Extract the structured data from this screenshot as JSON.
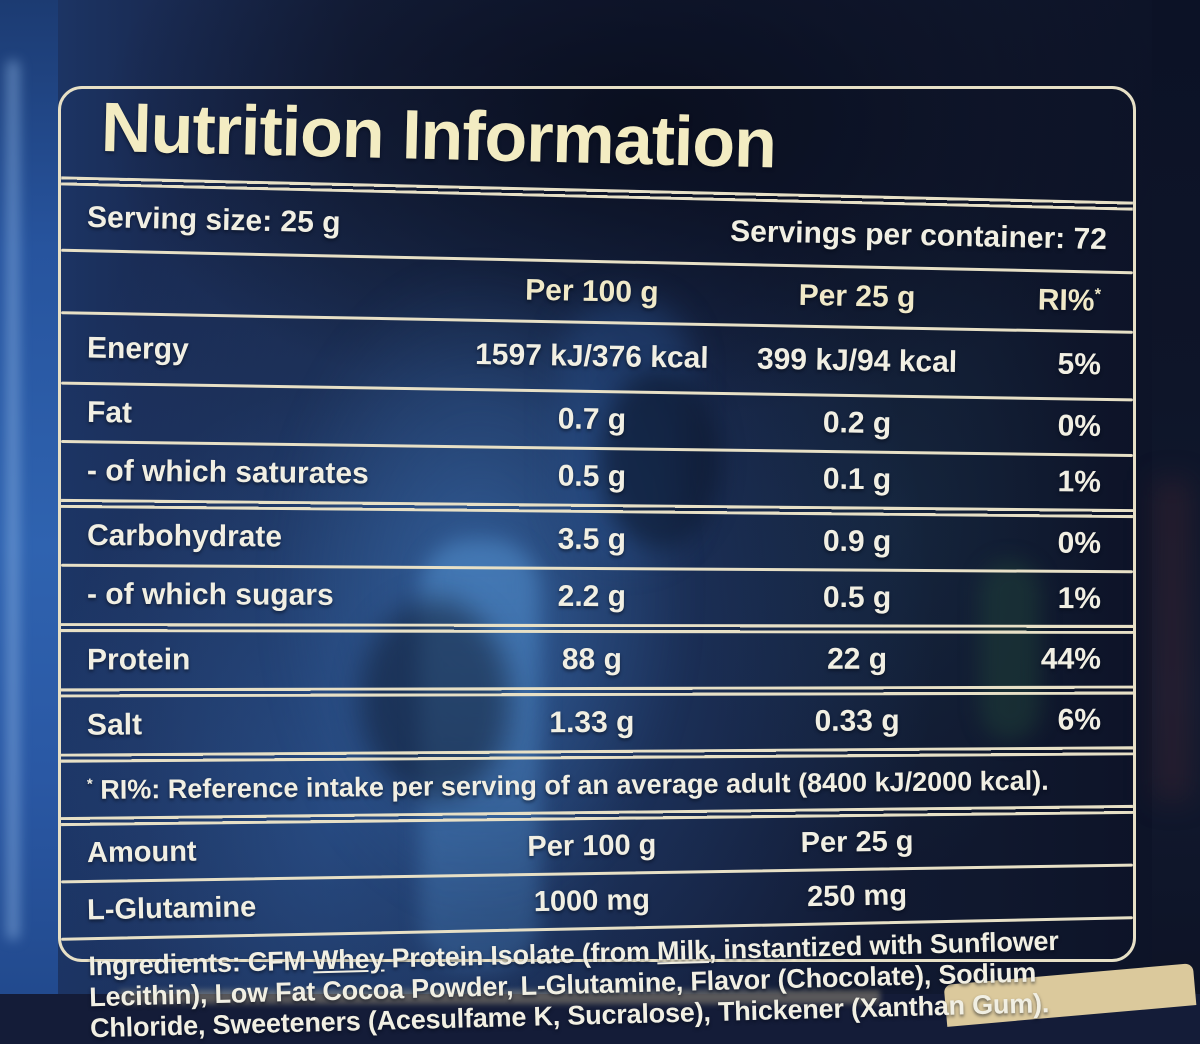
{
  "label": {
    "title": "Nutrition Information",
    "serving_size": "Serving size: 25 g",
    "servings_per_container": "Servings per container: 72",
    "columns": {
      "per100": "Per 100 g",
      "per25": "Per 25 g",
      "ri": "RI%",
      "ri_mark": "*"
    },
    "rows": [
      {
        "label": "Energy",
        "per100": "1597 kJ/376 kcal",
        "per25": "399 kJ/94 kcal",
        "ri": "5%"
      },
      {
        "label": "Fat",
        "per100": "0.7 g",
        "per25": "0.2 g",
        "ri": "0%"
      },
      {
        "label": "- of which saturates",
        "per100": "0.5 g",
        "per25": "0.1 g",
        "ri": "1%"
      },
      {
        "label": "Carbohydrate",
        "per100": "3.5 g",
        "per25": "0.9 g",
        "ri": "0%"
      },
      {
        "label": "- of which sugars",
        "per100": "2.2 g",
        "per25": "0.5 g",
        "ri": "1%"
      },
      {
        "label": "Protein",
        "per100": "88 g",
        "per25": "22 g",
        "ri": "44%"
      },
      {
        "label": "Salt",
        "per100": "1.33 g",
        "per25": "0.33 g",
        "ri": "6%"
      }
    ],
    "footnote": {
      "mark": "*",
      "text": "RI%: Reference intake per serving of an average adult (8400 kJ/2000 kcal)."
    },
    "supplement": {
      "amount_label": "Amount",
      "per100_label": "Per 100 g",
      "per25_label": "Per 25 g",
      "rows": [
        {
          "label": "L-Glutamine",
          "per100": "1000 mg",
          "per25": "250 mg"
        }
      ]
    },
    "ingredients": {
      "label": "Ingredients:",
      "part1": " CFM ",
      "allergen1": "Whey",
      "part2": " Protein Isolate (from ",
      "allergen2": "Milk",
      "part3": ", instantized with Sunflower Lecithin), Low Fat Cocoa Powder, L-Glutamine, Flavor (Chocolate), Sodium Chloride, Sweeteners (Acesulfame K, Sucralose), Thickener (Xanthan Gum)."
    }
  },
  "colors": {
    "tub_blue_dark": "#141c38",
    "tub_blue_light": "#2f63b0",
    "label_border": "#e7e0c6",
    "title_text": "#f3ecc2",
    "body_text": "#f1efe3",
    "bottom_band_beige": "#dbc99c"
  }
}
